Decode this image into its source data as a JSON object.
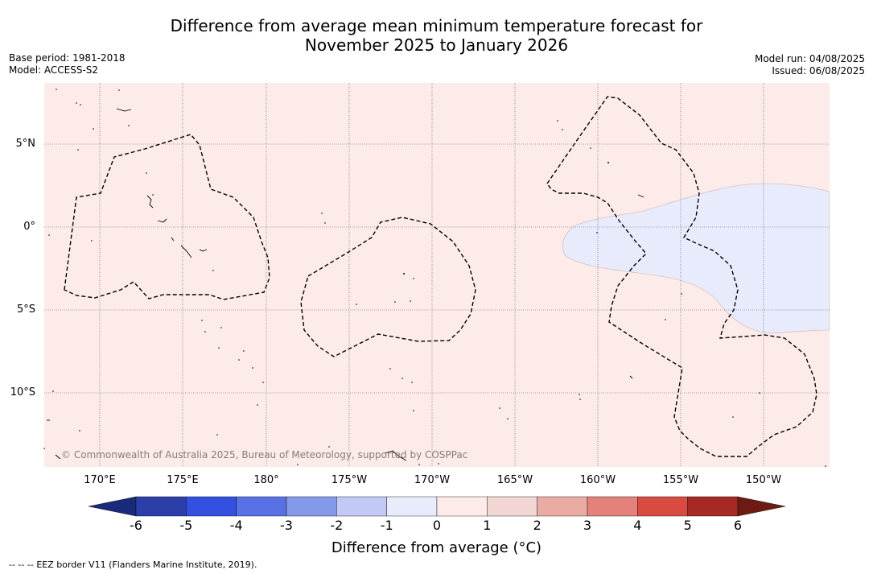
{
  "title": {
    "line1": "Difference from average mean minimum temperature forecast for",
    "line2": "November 2025 to January 2026"
  },
  "meta": {
    "base_period": "Base period: 1981-2018",
    "model": "Model: ACCESS-S2",
    "model_run": "Model run: 04/08/2025",
    "issued": "Issued: 06/08/2025"
  },
  "map": {
    "copyright": "© Commonwealth of Australia 2025, Bureau of Meteorology, supported by COSPPac",
    "lat_labels": [
      "5°N",
      "0°",
      "5°S",
      "10°S"
    ],
    "lon_labels": [
      "170°E",
      "175°E",
      "180°",
      "175°W",
      "170°W",
      "165°W",
      "160°W",
      "155°W",
      "150°W"
    ],
    "background_category": "0 to 1",
    "cool_region_category": "-1 to 0",
    "boundary_style": "dashed"
  },
  "colorbar": {
    "label": "Difference from average (°C)",
    "ticks": [
      "-6",
      "-5",
      "-4",
      "-3",
      "-2",
      "-1",
      "0",
      "1",
      "2",
      "3",
      "4",
      "5",
      "6"
    ],
    "colors": {
      "below_min": "#1a2a7a",
      "-6_-5": "#2c3ea8",
      "-5_-4": "#3350e0",
      "-4_-3": "#5872e6",
      "-3_-2": "#8499ea",
      "-2_-1": "#c2c9f4",
      "-1_0": "#e8ebfb",
      "0_1": "#fcebe9",
      "1_2": "#f1d6d3",
      "2_3": "#ebaba5",
      "3_4": "#e5817b",
      "4_5": "#d94a40",
      "5_6": "#a52a24",
      "above_max": "#6e1a14"
    }
  },
  "footer": {
    "legend_symbol": "-- -- --",
    "legend_text": "EEZ border V11 (Flanders Marine Institute, 2019)."
  }
}
